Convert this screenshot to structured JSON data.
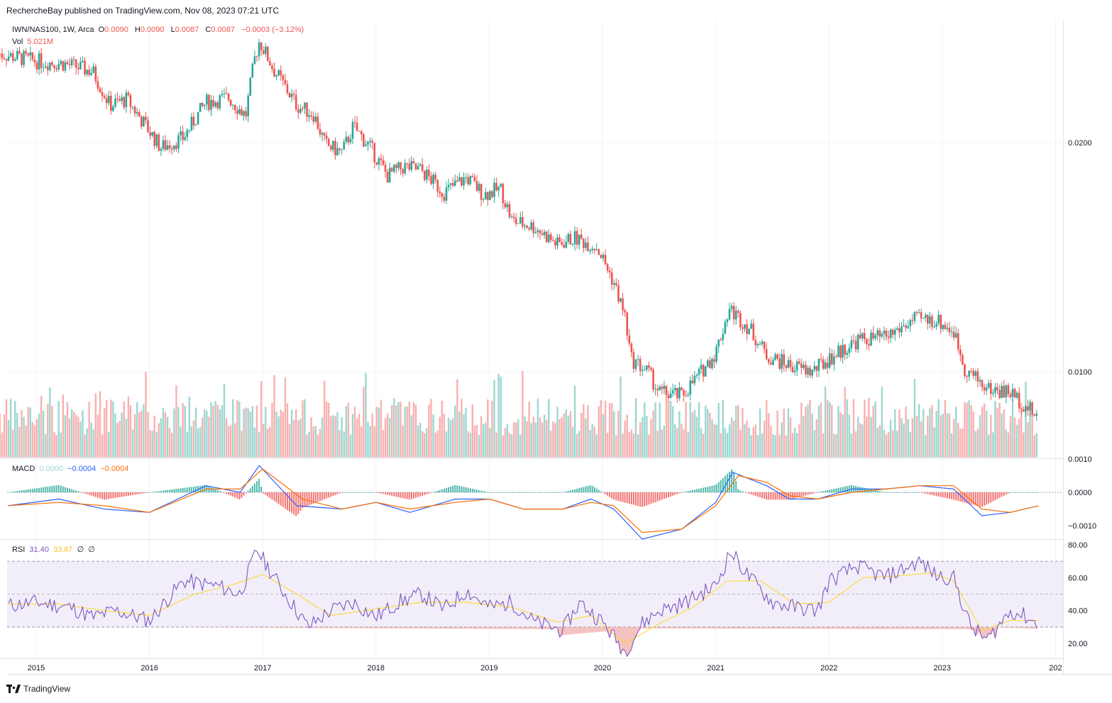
{
  "header": {
    "published": "RechercheBay published on TradingView.com, Nov 08, 2023 07:21 UTC"
  },
  "legend_main": {
    "symbol": "IWN/NAS100, 1W, Arca",
    "o_label": "O",
    "o_val": "0.0090",
    "h_label": "H",
    "h_val": "0.0090",
    "l_label": "L",
    "l_val": "0.0087",
    "c_label": "C",
    "c_val": "0.0087",
    "change": "−0.0003 (−3.12%)",
    "vol_label": "Vol",
    "vol_val": "5.021M"
  },
  "legend_macd": {
    "label": "MACD",
    "hist": "0.0000",
    "macd": "−0.0004",
    "signal": "−0.0004"
  },
  "legend_rsi": {
    "label": "RSI",
    "rsi": "31.40",
    "ma": "33.87",
    "extra1": "∅",
    "extra2": "∅"
  },
  "footer": {
    "brand": "TradingView"
  },
  "colors": {
    "up": "#26a69a",
    "down": "#ef5350",
    "macd": "#2962ff",
    "signal": "#ff6d00",
    "rsi": "#7e57c2",
    "rsi_ma": "#fdd835",
    "band": "#ede7f6"
  },
  "chart_data": [
    {
      "type": "candlestick",
      "title": "IWN/NAS100, 1W, Arca",
      "x_ticks": [
        "2015",
        "2016",
        "2017",
        "2018",
        "2019",
        "2020",
        "2021",
        "2022",
        "2023",
        "202"
      ],
      "y_ticks": [
        "0.0200",
        "0.0100"
      ],
      "y_scale": "log",
      "ylim": [
        0.0077,
        0.029
      ],
      "close_path": [
        {
          "x": 2014.66,
          "y": 0.0262
        },
        {
          "x": 2015.0,
          "y": 0.0256
        },
        {
          "x": 2015.25,
          "y": 0.0254
        },
        {
          "x": 2015.5,
          "y": 0.0248
        },
        {
          "x": 2015.65,
          "y": 0.0224
        },
        {
          "x": 2015.8,
          "y": 0.0228
        },
        {
          "x": 2016.0,
          "y": 0.0207
        },
        {
          "x": 2016.1,
          "y": 0.0197
        },
        {
          "x": 2016.3,
          "y": 0.0203
        },
        {
          "x": 2016.5,
          "y": 0.0226
        },
        {
          "x": 2016.7,
          "y": 0.0229
        },
        {
          "x": 2016.85,
          "y": 0.0217
        },
        {
          "x": 2016.93,
          "y": 0.0258
        },
        {
          "x": 2016.97,
          "y": 0.0272
        },
        {
          "x": 2017.1,
          "y": 0.0249
        },
        {
          "x": 2017.3,
          "y": 0.0224
        },
        {
          "x": 2017.45,
          "y": 0.0218
        },
        {
          "x": 2017.55,
          "y": 0.0199
        },
        {
          "x": 2017.7,
          "y": 0.0194
        },
        {
          "x": 2017.8,
          "y": 0.021
        },
        {
          "x": 2017.95,
          "y": 0.0197
        },
        {
          "x": 2018.1,
          "y": 0.0181
        },
        {
          "x": 2018.25,
          "y": 0.0186
        },
        {
          "x": 2018.4,
          "y": 0.0184
        },
        {
          "x": 2018.6,
          "y": 0.0172
        },
        {
          "x": 2018.8,
          "y": 0.018
        },
        {
          "x": 2018.95,
          "y": 0.0171
        },
        {
          "x": 2019.1,
          "y": 0.0174
        },
        {
          "x": 2019.2,
          "y": 0.0158
        },
        {
          "x": 2019.4,
          "y": 0.0155
        },
        {
          "x": 2019.6,
          "y": 0.0147
        },
        {
          "x": 2019.75,
          "y": 0.015
        },
        {
          "x": 2019.95,
          "y": 0.0146
        },
        {
          "x": 2020.1,
          "y": 0.0131
        },
        {
          "x": 2020.2,
          "y": 0.0118
        },
        {
          "x": 2020.25,
          "y": 0.0104
        },
        {
          "x": 2020.4,
          "y": 0.01
        },
        {
          "x": 2020.5,
          "y": 0.0094
        },
        {
          "x": 2020.7,
          "y": 0.0093
        },
        {
          "x": 2020.85,
          "y": 0.0099
        },
        {
          "x": 2021.0,
          "y": 0.0106
        },
        {
          "x": 2021.12,
          "y": 0.0121
        },
        {
          "x": 2021.3,
          "y": 0.0114
        },
        {
          "x": 2021.45,
          "y": 0.0105
        },
        {
          "x": 2021.65,
          "y": 0.0102
        },
        {
          "x": 2021.85,
          "y": 0.01
        },
        {
          "x": 2022.0,
          "y": 0.0104
        },
        {
          "x": 2022.25,
          "y": 0.011
        },
        {
          "x": 2022.5,
          "y": 0.0111
        },
        {
          "x": 2022.75,
          "y": 0.0117
        },
        {
          "x": 2022.95,
          "y": 0.0117
        },
        {
          "x": 2023.1,
          "y": 0.0113
        },
        {
          "x": 2023.2,
          "y": 0.0101
        },
        {
          "x": 2023.4,
          "y": 0.0095
        },
        {
          "x": 2023.6,
          "y": 0.0094
        },
        {
          "x": 2023.85,
          "y": 0.0087
        }
      ],
      "volume_label": "Vol"
    },
    {
      "type": "line",
      "title": "MACD",
      "y_ticks": [
        "0.0010",
        "0.0000",
        "−0.0010"
      ],
      "ylim": [
        -0.0014,
        0.001
      ],
      "series": [
        {
          "name": "MACD",
          "points": [
            [
              2014.75,
              -0.0004
            ],
            [
              2015.2,
              -0.0002
            ],
            [
              2015.6,
              -0.0005
            ],
            [
              2016.0,
              -0.0006
            ],
            [
              2016.5,
              0.0002
            ],
            [
              2016.8,
              0.0
            ],
            [
              2016.97,
              0.0008
            ],
            [
              2017.3,
              -0.0004
            ],
            [
              2017.7,
              -0.0005
            ],
            [
              2018.0,
              -0.0003
            ],
            [
              2018.3,
              -0.0006
            ],
            [
              2018.7,
              -0.0002
            ],
            [
              2019.0,
              -0.0002
            ],
            [
              2019.3,
              -0.0005
            ],
            [
              2019.65,
              -0.0005
            ],
            [
              2019.9,
              -0.0002
            ],
            [
              2020.1,
              -0.0005
            ],
            [
              2020.35,
              -0.0014
            ],
            [
              2020.7,
              -0.0011
            ],
            [
              2021.0,
              -0.0003
            ],
            [
              2021.15,
              0.0006
            ],
            [
              2021.45,
              0.0002
            ],
            [
              2021.65,
              -0.0002
            ],
            [
              2021.9,
              -0.0002
            ],
            [
              2022.2,
              0.0001
            ],
            [
              2022.5,
              0.0001
            ],
            [
              2022.8,
              0.0002
            ],
            [
              2023.1,
              0.0001
            ],
            [
              2023.35,
              -0.0007
            ],
            [
              2023.6,
              -0.0006
            ],
            [
              2023.85,
              -0.0004
            ]
          ]
        },
        {
          "name": "Signal",
          "points": [
            [
              2014.75,
              -0.0004
            ],
            [
              2015.2,
              -0.0003
            ],
            [
              2015.6,
              -0.0004
            ],
            [
              2016.0,
              -0.0006
            ],
            [
              2016.5,
              0.0001
            ],
            [
              2016.8,
              0.0001
            ],
            [
              2017.0,
              0.0007
            ],
            [
              2017.35,
              -0.0002
            ],
            [
              2017.7,
              -0.0005
            ],
            [
              2018.0,
              -0.0003
            ],
            [
              2018.3,
              -0.0005
            ],
            [
              2018.7,
              -0.0003
            ],
            [
              2019.0,
              -0.0002
            ],
            [
              2019.3,
              -0.0005
            ],
            [
              2019.65,
              -0.0005
            ],
            [
              2019.9,
              -0.0003
            ],
            [
              2020.1,
              -0.0004
            ],
            [
              2020.35,
              -0.0012
            ],
            [
              2020.7,
              -0.0011
            ],
            [
              2021.0,
              -0.0004
            ],
            [
              2021.2,
              0.0005
            ],
            [
              2021.45,
              0.0003
            ],
            [
              2021.65,
              -0.0001
            ],
            [
              2021.9,
              -0.0002
            ],
            [
              2022.2,
              0.0
            ],
            [
              2022.5,
              0.0001
            ],
            [
              2022.8,
              0.0002
            ],
            [
              2023.1,
              0.0002
            ],
            [
              2023.35,
              -0.0005
            ],
            [
              2023.6,
              -0.0006
            ],
            [
              2023.85,
              -0.0004
            ]
          ]
        }
      ]
    },
    {
      "type": "line",
      "title": "RSI",
      "y_ticks": [
        "80.00",
        "60.00",
        "40.00",
        "20.00"
      ],
      "ylim": [
        11,
        83
      ],
      "band": [
        30,
        70
      ],
      "series": [
        {
          "name": "RSI",
          "points": [
            [
              2014.75,
              43
            ],
            [
              2015.0,
              45
            ],
            [
              2015.3,
              42
            ],
            [
              2015.5,
              36
            ],
            [
              2015.7,
              40
            ],
            [
              2016.0,
              34
            ],
            [
              2016.3,
              58
            ],
            [
              2016.6,
              55
            ],
            [
              2016.8,
              50
            ],
            [
              2016.95,
              77
            ],
            [
              2017.15,
              55
            ],
            [
              2017.4,
              30
            ],
            [
              2017.6,
              40
            ],
            [
              2017.8,
              45
            ],
            [
              2018.0,
              36
            ],
            [
              2018.2,
              45
            ],
            [
              2018.4,
              50
            ],
            [
              2018.6,
              41
            ],
            [
              2018.8,
              52
            ],
            [
              2019.0,
              42
            ],
            [
              2019.2,
              45
            ],
            [
              2019.4,
              33
            ],
            [
              2019.65,
              28
            ],
            [
              2019.8,
              45
            ],
            [
              2020.0,
              33
            ],
            [
              2020.2,
              15
            ],
            [
              2020.35,
              32
            ],
            [
              2020.5,
              40
            ],
            [
              2020.7,
              44
            ],
            [
              2021.0,
              55
            ],
            [
              2021.13,
              76
            ],
            [
              2021.3,
              60
            ],
            [
              2021.5,
              45
            ],
            [
              2021.7,
              42
            ],
            [
              2021.9,
              40
            ],
            [
              2022.0,
              58
            ],
            [
              2022.25,
              67
            ],
            [
              2022.5,
              60
            ],
            [
              2022.8,
              70
            ],
            [
              2022.95,
              61
            ],
            [
              2023.1,
              60
            ],
            [
              2023.25,
              30
            ],
            [
              2023.4,
              22
            ],
            [
              2023.6,
              40
            ],
            [
              2023.75,
              36
            ],
            [
              2023.85,
              31
            ]
          ]
        },
        {
          "name": "RSI MA",
          "points": [
            [
              2014.75,
              44
            ],
            [
              2015.2,
              44
            ],
            [
              2015.6,
              40
            ],
            [
              2016.0,
              37
            ],
            [
              2016.4,
              50
            ],
            [
              2016.7,
              55
            ],
            [
              2017.0,
              62
            ],
            [
              2017.3,
              50
            ],
            [
              2017.6,
              37
            ],
            [
              2018.0,
              41
            ],
            [
              2018.4,
              45
            ],
            [
              2018.8,
              45
            ],
            [
              2019.2,
              42
            ],
            [
              2019.6,
              33
            ],
            [
              2019.9,
              37
            ],
            [
              2020.2,
              20
            ],
            [
              2020.5,
              32
            ],
            [
              2020.8,
              42
            ],
            [
              2021.1,
              58
            ],
            [
              2021.4,
              58
            ],
            [
              2021.7,
              44
            ],
            [
              2022.0,
              45
            ],
            [
              2022.3,
              60
            ],
            [
              2022.6,
              61
            ],
            [
              2022.9,
              63
            ],
            [
              2023.1,
              58
            ],
            [
              2023.35,
              28
            ],
            [
              2023.6,
              34
            ],
            [
              2023.85,
              34
            ]
          ]
        }
      ]
    }
  ]
}
